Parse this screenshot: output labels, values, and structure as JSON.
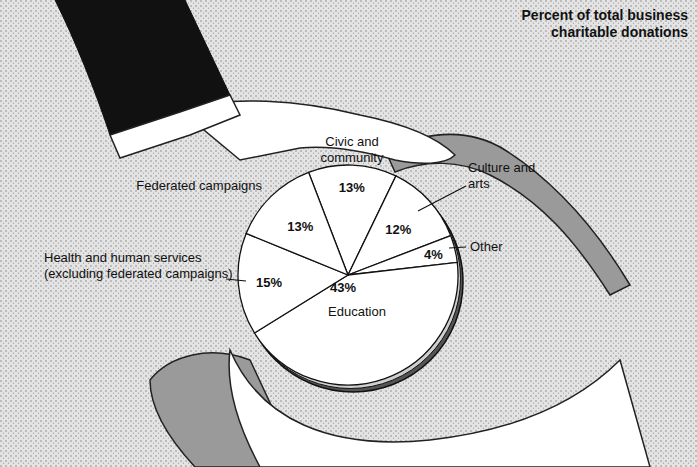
{
  "chart_data": {
    "type": "pie",
    "title": "Percent of total business charitable donations",
    "categories": [
      "Civic and community",
      "Culture and arts",
      "Other",
      "Education",
      "Health and human services (excluding federated campaigns)",
      "Federated campaigns"
    ],
    "values": [
      13,
      12,
      4,
      43,
      15,
      13
    ],
    "value_labels": [
      "13%",
      "12%",
      "4%",
      "43%",
      "15%",
      "13%"
    ],
    "color": "#ffffff",
    "data_labels": true
  }
}
